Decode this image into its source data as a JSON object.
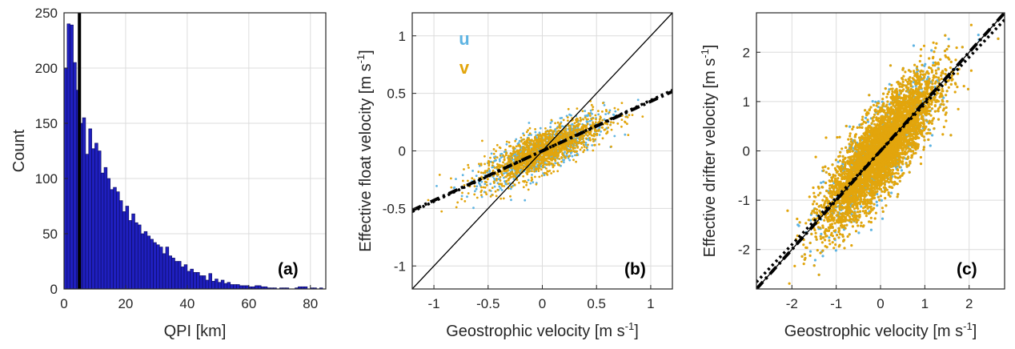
{
  "chart_data": [
    {
      "type": "bar",
      "panel_label": "(a)",
      "xlabel": "QPI [km]",
      "ylabel": "Count",
      "xlim": [
        0,
        85
      ],
      "ylim": [
        0,
        250
      ],
      "xticks": [
        0,
        20,
        40,
        60,
        80
      ],
      "yticks": [
        0,
        50,
        100,
        150,
        200,
        250
      ],
      "grid": true,
      "bar_color": "#1f1fbf",
      "bin_width": 1,
      "bin_start": 0,
      "values": [
        200,
        240,
        239,
        205,
        180,
        150,
        155,
        122,
        145,
        127,
        132,
        125,
        105,
        110,
        100,
        90,
        92,
        88,
        80,
        70,
        75,
        62,
        68,
        60,
        58,
        50,
        52,
        48,
        45,
        42,
        40,
        38,
        32,
        38,
        30,
        28,
        25,
        25,
        20,
        22,
        16,
        18,
        15,
        15,
        12,
        12,
        8,
        14,
        7,
        9,
        6,
        8,
        5,
        6,
        4,
        4,
        4,
        3,
        3,
        3,
        2,
        2,
        3,
        3,
        2,
        2,
        1,
        1,
        1,
        0,
        1,
        1,
        1,
        0,
        0,
        1,
        2,
        2,
        2,
        0,
        1,
        1,
        0,
        1,
        0
      ],
      "vertical_line_x": 5
    },
    {
      "type": "scatter",
      "panel_label": "(b)",
      "xlabel": "Geostrophic velocity [m s",
      "xlabel_sup": "-1",
      "xlabel_end": "]",
      "ylabel": "Effective float velocity [m s",
      "ylabel_sup": "-1",
      "ylabel_end": "]",
      "xlim": [
        -1.2,
        1.2
      ],
      "ylim": [
        -1.2,
        1.2
      ],
      "xticks": [
        -1,
        -0.5,
        0,
        0.5,
        1
      ],
      "yticks": [
        -1,
        -0.5,
        0,
        0.5,
        1
      ],
      "grid": true,
      "series": [
        {
          "name": "u",
          "color": "#5fb4e2"
        },
        {
          "name": "v",
          "color": "#e2a50c"
        }
      ],
      "cloud": {
        "x_mean": 0,
        "x_std": 0.28,
        "slope": 0.42,
        "scatter": 0.09,
        "n": 1400
      },
      "fit_lines": [
        {
          "style": "dash-dot",
          "slope": 0.43,
          "intercept": 0.0
        },
        {
          "style": "dotted",
          "slope": 0.44,
          "intercept": 0.0
        },
        {
          "style": "solid-1:1",
          "slope": 1,
          "intercept": 0
        }
      ]
    },
    {
      "type": "scatter",
      "panel_label": "(c)",
      "xlabel": "Geostrophic velocity [m s",
      "xlabel_sup": "-1",
      "xlabel_end": "]",
      "ylabel": "Effective drifter velocity [m s",
      "ylabel_sup": "-1",
      "ylabel_end": "]",
      "xlim": [
        -2.8,
        2.8
      ],
      "ylim": [
        -2.8,
        2.8
      ],
      "xticks": [
        -2,
        -1,
        0,
        1,
        2
      ],
      "yticks": [
        -2,
        -1,
        0,
        1,
        2
      ],
      "grid": true,
      "series": [
        {
          "name": "u",
          "color": "#5fb4e2"
        },
        {
          "name": "v",
          "color": "#e2a50c"
        }
      ],
      "cloud": {
        "x_mean": 0,
        "x_std": 0.62,
        "slope": 1.0,
        "scatter": 0.42,
        "n": 4500
      },
      "fit_lines": [
        {
          "style": "dash-dot",
          "slope": 1.0,
          "intercept": 0.0
        },
        {
          "style": "dotted",
          "slope": 0.95,
          "intercept": 0.0
        },
        {
          "style": "solid-1:1",
          "slope": 1,
          "intercept": 0
        }
      ]
    }
  ]
}
